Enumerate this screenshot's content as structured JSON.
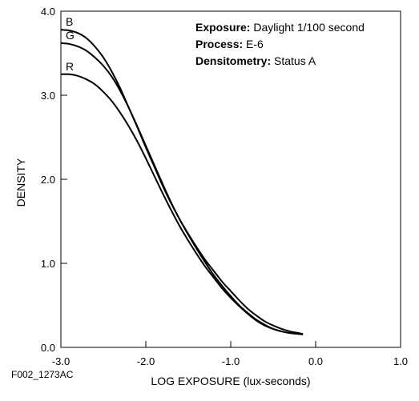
{
  "chart_data": {
    "type": "line",
    "xlabel": "LOG EXPOSURE (lux-seconds)",
    "ylabel": "DENSITY",
    "xlim": [
      -3.0,
      1.0
    ],
    "ylim": [
      0.0,
      4.0
    ],
    "x_ticks": [
      "-3.0",
      "-2.0",
      "-1.0",
      "0.0",
      "1.0"
    ],
    "y_ticks": [
      "0.0",
      "1.0",
      "2.0",
      "3.0",
      "4.0"
    ],
    "grid": false,
    "annotations": [
      {
        "key": "Exposure:",
        "value": " Daylight 1/100 second"
      },
      {
        "key": "Process:",
        "value": " E-6"
      },
      {
        "key": "Densitometry:",
        "value": " Status A"
      }
    ],
    "series": [
      {
        "name": "B",
        "color": "#000000",
        "x": [
          -3.0,
          -2.9,
          -2.8,
          -2.7,
          -2.6,
          -2.5,
          -2.4,
          -2.3,
          -2.2,
          -2.1,
          -2.0,
          -1.9,
          -1.8,
          -1.7,
          -1.6,
          -1.5,
          -1.4,
          -1.3,
          -1.2,
          -1.1,
          -1.0,
          -0.9,
          -0.8,
          -0.7,
          -0.6,
          -0.5,
          -0.4,
          -0.3,
          -0.2,
          -0.15
        ],
        "y": [
          3.78,
          3.77,
          3.74,
          3.68,
          3.58,
          3.45,
          3.28,
          3.08,
          2.85,
          2.62,
          2.38,
          2.15,
          1.92,
          1.71,
          1.52,
          1.35,
          1.19,
          1.04,
          0.91,
          0.78,
          0.67,
          0.56,
          0.46,
          0.38,
          0.31,
          0.26,
          0.22,
          0.19,
          0.17,
          0.16
        ]
      },
      {
        "name": "G",
        "color": "#000000",
        "x": [
          -3.0,
          -2.9,
          -2.8,
          -2.7,
          -2.6,
          -2.5,
          -2.4,
          -2.3,
          -2.2,
          -2.1,
          -2.0,
          -1.9,
          -1.8,
          -1.7,
          -1.6,
          -1.5,
          -1.4,
          -1.3,
          -1.2,
          -1.1,
          -1.0,
          -0.9,
          -0.8,
          -0.7,
          -0.6,
          -0.5,
          -0.4,
          -0.3,
          -0.2,
          -0.15
        ],
        "y": [
          3.62,
          3.61,
          3.58,
          3.53,
          3.45,
          3.35,
          3.22,
          3.05,
          2.85,
          2.63,
          2.4,
          2.17,
          1.94,
          1.72,
          1.52,
          1.34,
          1.17,
          1.01,
          0.86,
          0.73,
          0.61,
          0.5,
          0.41,
          0.33,
          0.27,
          0.22,
          0.19,
          0.17,
          0.16,
          0.155
        ]
      },
      {
        "name": "R",
        "color": "#000000",
        "x": [
          -3.0,
          -2.9,
          -2.8,
          -2.7,
          -2.6,
          -2.5,
          -2.4,
          -2.3,
          -2.2,
          -2.1,
          -2.0,
          -1.9,
          -1.8,
          -1.7,
          -1.6,
          -1.5,
          -1.4,
          -1.3,
          -1.2,
          -1.1,
          -1.0,
          -0.9,
          -0.8,
          -0.7,
          -0.6,
          -0.5,
          -0.4,
          -0.3,
          -0.2,
          -0.15
        ],
        "y": [
          3.25,
          3.25,
          3.23,
          3.19,
          3.13,
          3.04,
          2.93,
          2.79,
          2.63,
          2.45,
          2.25,
          2.04,
          1.83,
          1.63,
          1.44,
          1.27,
          1.11,
          0.96,
          0.83,
          0.7,
          0.59,
          0.49,
          0.4,
          0.32,
          0.26,
          0.22,
          0.19,
          0.17,
          0.16,
          0.155
        ]
      }
    ]
  },
  "figure_id": "F002_1273AC"
}
